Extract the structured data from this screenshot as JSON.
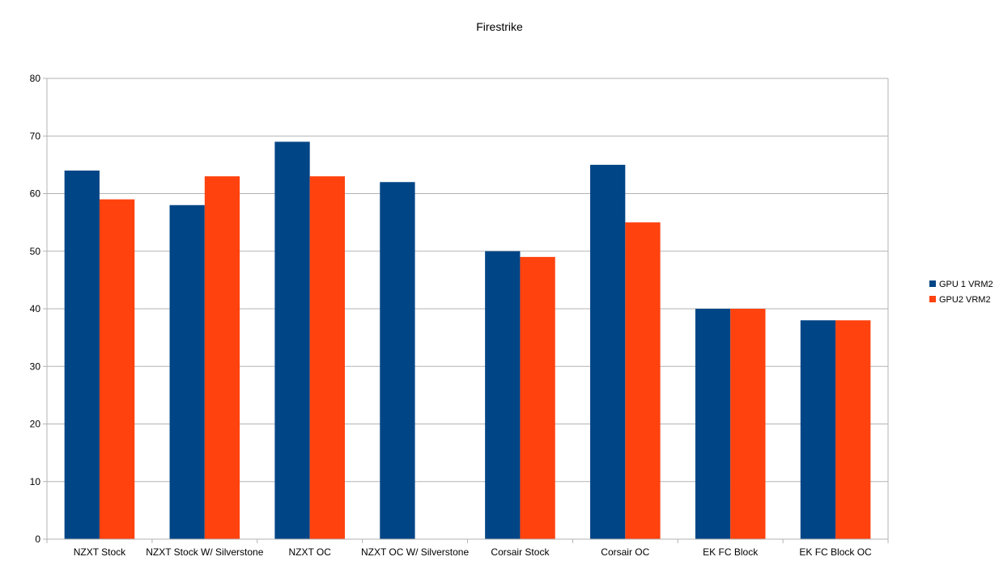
{
  "chart_data": {
    "type": "bar",
    "title": "Firestrike",
    "xlabel": "",
    "ylabel": "",
    "ylim": [
      0,
      80
    ],
    "yticks": [
      0,
      10,
      20,
      30,
      40,
      50,
      60,
      70,
      80
    ],
    "grid": true,
    "legend_position": "right",
    "categories": [
      "NZXT Stock",
      "NZXT Stock W/ Silverstone",
      "NZXT OC",
      "NZXT OC W/ Silverstone",
      "Corsair Stock",
      "Corsair OC",
      "EK FC Block",
      "EK FC Block OC"
    ],
    "series": [
      {
        "name": "GPU 1 VRM2",
        "color": "#004586",
        "values": [
          64,
          58,
          69,
          62,
          50,
          65,
          40,
          38
        ]
      },
      {
        "name": "GPU2 VRM2",
        "color": "#ff420e",
        "values": [
          59,
          63,
          63,
          null,
          49,
          55,
          40,
          38
        ]
      }
    ]
  }
}
